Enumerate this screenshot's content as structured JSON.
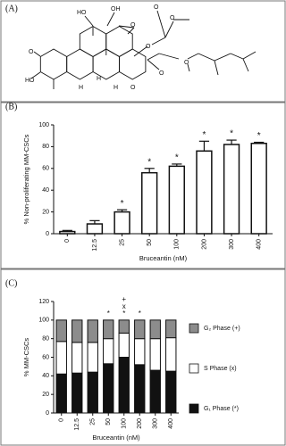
{
  "structure": {
    "panel_label": "(A)",
    "atoms": [
      "O",
      "HO",
      "HO",
      "OH",
      "O",
      "O",
      "O",
      "O",
      "O",
      "O",
      "O",
      "H",
      "H",
      "H"
    ]
  },
  "chart_data": [
    {
      "type": "bar",
      "panel_label": "(B)",
      "xlabel": "Bruceantin (nM)",
      "ylabel": "% Non-proliferating MM-CSCs",
      "categories": [
        "0",
        "12.5",
        "25",
        "50",
        "100",
        "200",
        "300",
        "400"
      ],
      "values": [
        2,
        9,
        20,
        56,
        62,
        76,
        82,
        83
      ],
      "errors": [
        1,
        3,
        2,
        4,
        2,
        9,
        4,
        1
      ],
      "annotations": [
        null,
        null,
        "*",
        "*",
        "*",
        "*",
        "*",
        "*"
      ],
      "color": "#ffffff",
      "ylim": [
        0,
        100
      ],
      "yticks": [
        0,
        20,
        40,
        60,
        80,
        100
      ]
    },
    {
      "type": "stacked-bar",
      "panel_label": "(C)",
      "xlabel": "Bruceantin (nM)",
      "ylabel": "% MM-CSCs",
      "categories": [
        "0",
        "12.5",
        "25",
        "50",
        "100",
        "200",
        "300",
        "400"
      ],
      "series": [
        {
          "name": "G₁ Phase (*)",
          "color": "#111111",
          "values": [
            42,
            43,
            44,
            53,
            60,
            52,
            46,
            45
          ]
        },
        {
          "name": "S Phase (x)",
          "color": "#ffffff",
          "values": [
            35,
            33,
            32,
            27,
            26,
            28,
            34,
            36
          ]
        },
        {
          "name": "G₂ Phase (+)",
          "color": "#8c8c8c",
          "values": [
            23,
            24,
            24,
            20,
            14,
            20,
            20,
            19
          ]
        }
      ],
      "annotations": [
        null,
        null,
        null,
        [
          "*"
        ],
        [
          "+",
          "x",
          "*"
        ],
        [
          "*"
        ],
        null,
        null
      ],
      "legend": "right",
      "ylim": [
        0,
        120
      ],
      "yticks": [
        0,
        20,
        40,
        60,
        80,
        100,
        120
      ]
    }
  ]
}
